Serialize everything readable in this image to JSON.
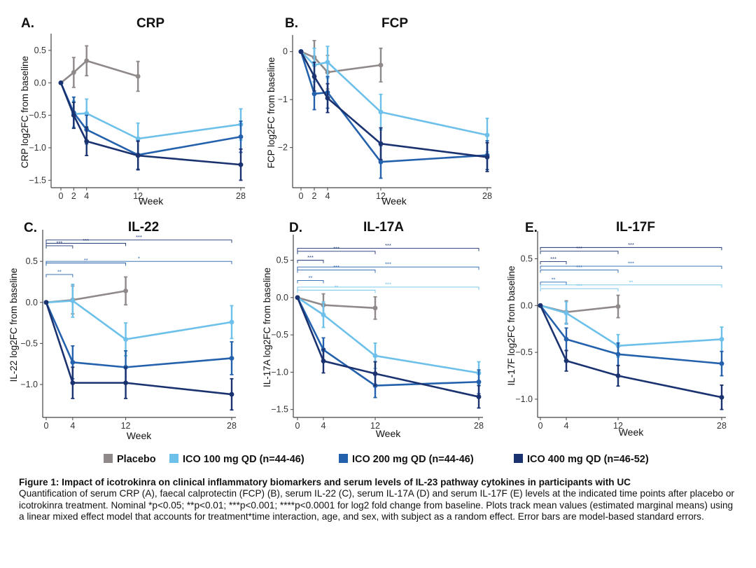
{
  "colors": {
    "placebo": "#8f8a89",
    "ico100": "#6cc0ea",
    "ico200": "#2461ad",
    "ico400": "#1a3370",
    "axis": "#444444"
  },
  "legend": {
    "items": [
      {
        "key": "placebo",
        "label": "Placebo"
      },
      {
        "key": "ico100",
        "label": "ICO 100 mg QD (n=44-46)"
      },
      {
        "key": "ico200",
        "label": "ICO 200 mg QD (n=44-46)"
      },
      {
        "key": "ico400",
        "label": "ICO 400 mg QD (n=46-52)"
      }
    ]
  },
  "chart_data": [
    {
      "id": "A",
      "panel_label": "A.",
      "title": "CRP",
      "type": "line",
      "xlabel": "Week",
      "ylabel": "CRP log2FC from baseline",
      "xticks": [
        0,
        2,
        4,
        12,
        28
      ],
      "xlim": [
        0,
        28
      ],
      "yticks": [
        0.5,
        0.0,
        -0.5,
        -1.0,
        -1.5
      ],
      "ytick_labels": [
        "0.5",
        "0.0",
        "−0.5",
        "−1.0",
        "−1.5"
      ],
      "ylim": [
        -1.55,
        0.65
      ],
      "series": [
        {
          "key": "placebo",
          "name": "Placebo",
          "x": [
            0,
            2,
            4,
            12
          ],
          "y": [
            0.0,
            0.16,
            0.34,
            0.1
          ],
          "err": [
            0,
            0.23,
            0.23,
            0.23
          ]
        },
        {
          "key": "ico100",
          "name": "ICO 100 mg QD",
          "x": [
            0,
            2,
            4,
            12,
            28
          ],
          "y": [
            0.0,
            -0.48,
            -0.47,
            -0.86,
            -0.64
          ],
          "err": [
            0,
            0.2,
            0.22,
            0.24,
            0.24
          ]
        },
        {
          "key": "ico200",
          "name": "ICO 200 mg QD",
          "x": [
            0,
            2,
            4,
            12,
            28
          ],
          "y": [
            0.0,
            -0.46,
            -0.72,
            -1.11,
            -0.83
          ],
          "err": [
            0,
            0.24,
            0.22,
            0.22,
            0.24
          ]
        },
        {
          "key": "ico400",
          "name": "ICO 400 mg QD",
          "x": [
            0,
            2,
            4,
            12,
            28
          ],
          "y": [
            0.0,
            -0.5,
            -0.9,
            -1.12,
            -1.26
          ],
          "err": [
            0,
            0.2,
            0.22,
            0.22,
            0.24
          ]
        }
      ],
      "annotations": []
    },
    {
      "id": "B",
      "panel_label": "B.",
      "title": "FCP",
      "type": "line",
      "xlabel": "Week",
      "ylabel": "FCP log2FC from baseline",
      "xticks": [
        0,
        2,
        4,
        12,
        28
      ],
      "xlim": [
        0,
        28
      ],
      "yticks": [
        0,
        -1,
        -2
      ],
      "ytick_labels": [
        "0",
        "−1",
        "−2"
      ],
      "ylim": [
        -2.75,
        0.2
      ],
      "series": [
        {
          "key": "placebo",
          "name": "Placebo",
          "x": [
            0,
            2,
            4,
            12
          ],
          "y": [
            0.0,
            -0.12,
            -0.43,
            -0.28
          ],
          "err": [
            0,
            0.35,
            0.35,
            0.35
          ]
        },
        {
          "key": "ico100",
          "name": "ICO 100 mg QD",
          "x": [
            0,
            2,
            4,
            12,
            28
          ],
          "y": [
            0.0,
            -0.28,
            -0.22,
            -1.26,
            -1.74
          ],
          "err": [
            0,
            0.35,
            0.33,
            0.37,
            0.35
          ]
        },
        {
          "key": "ico200",
          "name": "ICO 200 mg QD",
          "x": [
            0,
            2,
            4,
            12,
            28
          ],
          "y": [
            0.0,
            -0.88,
            -0.85,
            -2.3,
            -2.16
          ],
          "err": [
            0,
            0.33,
            0.33,
            0.34,
            0.3
          ]
        },
        {
          "key": "ico400",
          "name": "ICO 400 mg QD",
          "x": [
            0,
            2,
            4,
            12,
            28
          ],
          "y": [
            0.0,
            -0.52,
            -0.97,
            -1.92,
            -2.2
          ],
          "err": [
            0,
            0.3,
            0.3,
            0.33,
            0.3
          ]
        }
      ],
      "annotations": []
    },
    {
      "id": "C",
      "panel_label": "C.",
      "title": "IL-22",
      "type": "line",
      "xlabel": "Week",
      "ylabel": "IL-22 log2FC from baseline",
      "xticks": [
        0,
        4,
        12,
        28
      ],
      "xlim": [
        0,
        28
      ],
      "yticks": [
        0.5,
        0.0,
        -0.5,
        -1.0
      ],
      "ytick_labels": [
        "0.5",
        "0.0",
        "−0.5",
        "−1.0"
      ],
      "ylim": [
        -1.35,
        0.8
      ],
      "series": [
        {
          "key": "placebo",
          "name": "Placebo",
          "x": [
            0,
            4,
            12
          ],
          "y": [
            0.0,
            0.03,
            0.14
          ],
          "err": [
            0,
            0.17,
            0.17
          ]
        },
        {
          "key": "ico100",
          "name": "ICO 100 mg QD",
          "x": [
            0,
            4,
            12,
            28
          ],
          "y": [
            0.0,
            0.02,
            -0.45,
            -0.24
          ],
          "err": [
            0,
            0.2,
            0.2,
            0.2
          ]
        },
        {
          "key": "ico200",
          "name": "ICO 200 mg QD",
          "x": [
            0,
            4,
            12,
            28
          ],
          "y": [
            0.0,
            -0.73,
            -0.79,
            -0.68
          ],
          "err": [
            0,
            0.2,
            0.2,
            0.2
          ]
        },
        {
          "key": "ico400",
          "name": "ICO 400 mg QD",
          "x": [
            0,
            4,
            12,
            28
          ],
          "y": [
            0.0,
            -0.98,
            -0.98,
            -1.12
          ],
          "err": [
            0,
            0.19,
            0.19,
            0.19
          ]
        }
      ],
      "annotations": [
        {
          "series": "ico400",
          "x_end": 4,
          "y": 0.69,
          "text": "***"
        },
        {
          "series": "ico400",
          "x_end": 12,
          "y": 0.72,
          "text": "***"
        },
        {
          "series": "ico400",
          "x_end": 28,
          "y": 0.76,
          "text": "***"
        },
        {
          "series": "ico200",
          "x_end": 4,
          "y": 0.34,
          "text": "**"
        },
        {
          "series": "ico200",
          "x_end": 12,
          "y": 0.48,
          "text": "**"
        },
        {
          "series": "ico200",
          "x_end": 28,
          "y": 0.5,
          "text": "*"
        }
      ]
    },
    {
      "id": "D",
      "panel_label": "D.",
      "title": "IL-17A",
      "type": "line",
      "xlabel": "Week",
      "ylabel": "IL-17A log2FC from baseline",
      "xticks": [
        0,
        4,
        12,
        28
      ],
      "xlim": [
        0,
        28
      ],
      "yticks": [
        0.5,
        0.0,
        -0.5,
        -1.0,
        -1.5
      ],
      "ytick_labels": [
        "0.5",
        "0.0",
        "−0.5",
        "−1.0",
        "−1.5"
      ],
      "ylim": [
        -1.55,
        0.75
      ],
      "series": [
        {
          "key": "placebo",
          "name": "Placebo",
          "x": [
            0,
            4,
            12
          ],
          "y": [
            0.0,
            -0.1,
            -0.14
          ],
          "err": [
            0,
            0.15,
            0.15
          ]
        },
        {
          "key": "ico100",
          "name": "ICO 100 mg QD",
          "x": [
            0,
            4,
            12,
            28
          ],
          "y": [
            0.0,
            -0.23,
            -0.78,
            -1.01
          ],
          "err": [
            0,
            0.17,
            0.17,
            0.15
          ]
        },
        {
          "key": "ico200",
          "name": "ICO 200 mg QD",
          "x": [
            0,
            4,
            12,
            28
          ],
          "y": [
            0.0,
            -0.7,
            -1.18,
            -1.13
          ],
          "err": [
            0,
            0.16,
            0.16,
            0.16
          ]
        },
        {
          "key": "ico400",
          "name": "ICO 400 mg QD",
          "x": [
            0,
            4,
            12,
            28
          ],
          "y": [
            0.0,
            -0.85,
            -1.02,
            -1.33
          ],
          "err": [
            0,
            0.16,
            0.16,
            0.15
          ]
        }
      ],
      "annotations": [
        {
          "series": "ico400",
          "x_end": 4,
          "y": 0.5,
          "text": "***"
        },
        {
          "series": "ico400",
          "x_end": 12,
          "y": 0.62,
          "text": "***"
        },
        {
          "series": "ico400",
          "x_end": 28,
          "y": 0.66,
          "text": "***"
        },
        {
          "series": "ico200",
          "x_end": 4,
          "y": 0.23,
          "text": "**"
        },
        {
          "series": "ico200",
          "x_end": 12,
          "y": 0.37,
          "text": "***"
        },
        {
          "series": "ico200",
          "x_end": 28,
          "y": 0.41,
          "text": "***"
        },
        {
          "series": "ico100",
          "x_end": 12,
          "y": 0.1,
          "text": "**"
        },
        {
          "series": "ico100",
          "x_end": 28,
          "y": 0.14,
          "text": "***"
        }
      ]
    },
    {
      "id": "E",
      "panel_label": "E.",
      "title": "IL-17F",
      "type": "line",
      "xlabel": "Week",
      "ylabel": "IL-17F log2FC from baseline",
      "xticks": [
        0,
        4,
        12,
        28
      ],
      "xlim": [
        0,
        28
      ],
      "yticks": [
        0.5,
        0.0,
        -0.5,
        -1.0
      ],
      "ytick_labels": [
        "0.5",
        "0.0",
        "−0.5",
        "−1.0"
      ],
      "ylim": [
        -1.15,
        0.72
      ],
      "series": [
        {
          "key": "placebo",
          "name": "Placebo",
          "x": [
            0,
            4,
            12
          ],
          "y": [
            0.0,
            -0.07,
            -0.01
          ],
          "err": [
            0,
            0.12,
            0.12
          ]
        },
        {
          "key": "ico100",
          "name": "ICO 100 mg QD",
          "x": [
            0,
            4,
            12,
            28
          ],
          "y": [
            0.0,
            -0.08,
            -0.43,
            -0.36
          ],
          "err": [
            0,
            0.12,
            0.12,
            0.13
          ]
        },
        {
          "key": "ico200",
          "name": "ICO 200 mg QD",
          "x": [
            0,
            4,
            12,
            28
          ],
          "y": [
            0.0,
            -0.36,
            -0.52,
            -0.62
          ],
          "err": [
            0,
            0.12,
            0.12,
            0.13
          ]
        },
        {
          "key": "ico400",
          "name": "ICO 400 mg QD",
          "x": [
            0,
            4,
            12,
            28
          ],
          "y": [
            0.0,
            -0.59,
            -0.75,
            -0.98
          ],
          "err": [
            0,
            0.11,
            0.11,
            0.13
          ]
        }
      ],
      "annotations": [
        {
          "series": "ico400",
          "x_end": 4,
          "y": 0.47,
          "text": "***"
        },
        {
          "series": "ico400",
          "x_end": 12,
          "y": 0.58,
          "text": "***"
        },
        {
          "series": "ico400",
          "x_end": 28,
          "y": 0.62,
          "text": "***"
        },
        {
          "series": "ico200",
          "x_end": 4,
          "y": 0.25,
          "text": "**"
        },
        {
          "series": "ico200",
          "x_end": 12,
          "y": 0.38,
          "text": "***"
        },
        {
          "series": "ico200",
          "x_end": 28,
          "y": 0.42,
          "text": "***"
        },
        {
          "series": "ico100",
          "x_end": 12,
          "y": 0.18,
          "text": "***"
        },
        {
          "series": "ico100",
          "x_end": 28,
          "y": 0.22,
          "text": "**"
        }
      ]
    }
  ],
  "caption": {
    "title": "Figure 1: Impact of icotrokinra on clinical inflammatory biomarkers and serum levels of IL-23 pathway cytokines in participants with UC",
    "body": "Quantification of serum CRP (A), faecal calprotectin (FCP) (B), serum IL-22 (C), serum IL-17A (D) and serum IL-17F (E) levels at the indicated time points after placebo or icotrokinra treatment. Nominal *p<0.05; **p<0.01; ***p<0.001; ****p<0.0001 for log2 fold change from baseline. Plots track mean values (estimated marginal means) using a linear mixed effect model that accounts for treatment*time interaction, age, and sex, with subject as a random effect. Error bars are model-based standard errors."
  }
}
